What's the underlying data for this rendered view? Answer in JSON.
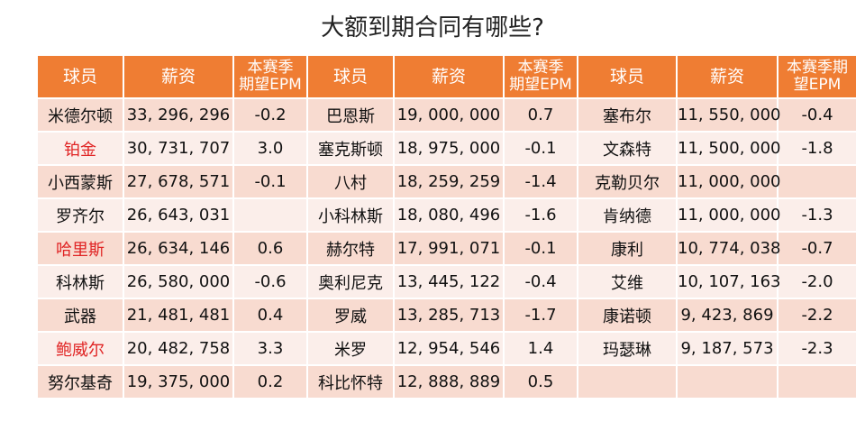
{
  "title": "大额到期合同有哪些?",
  "headers": [
    "球员",
    "薪资",
    "本赛季期望EPM",
    "球员",
    "薪资",
    "本赛季期望EPM",
    "球员",
    "薪资",
    "本赛季期望EPM"
  ],
  "header_lines": [
    [
      "球员"
    ],
    [
      "薪资"
    ],
    [
      "本赛季",
      "期望EPM"
    ],
    [
      "球员"
    ],
    [
      "薪资"
    ],
    [
      "本赛季",
      "期望EPM"
    ],
    [
      "球员"
    ],
    [
      "薪资"
    ],
    [
      "本赛季期",
      "望EPM"
    ]
  ],
  "colors": {
    "header_bg": "#ef7d33",
    "row_odd_bg": "#f8dbd0",
    "row_even_bg": "#fbeeea",
    "highlight_name": "#e02424"
  },
  "rows": [
    [
      {
        "name": "米德尔顿",
        "salary": "33, 296, 296",
        "epm": "-0.2"
      },
      {
        "name": "巴恩斯",
        "salary": "19, 000, 000",
        "epm": "0.7"
      },
      {
        "name": "塞布尔",
        "salary": "11, 550, 000",
        "epm": "-0.4"
      }
    ],
    [
      {
        "name": "铂金",
        "salary": "30, 731, 707",
        "epm": "3.0",
        "highlight": true
      },
      {
        "name": "塞克斯顿",
        "salary": "18, 975, 000",
        "epm": "-0.1"
      },
      {
        "name": "文森特",
        "salary": "11, 500, 000",
        "epm": "-1.8"
      }
    ],
    [
      {
        "name": "小西蒙斯",
        "salary": "27, 678, 571",
        "epm": "-0.1"
      },
      {
        "name": "八村",
        "salary": "18, 259, 259",
        "epm": "-1.4"
      },
      {
        "name": "克勒贝尔",
        "salary": "11, 000, 000",
        "epm": ""
      }
    ],
    [
      {
        "name": "罗齐尔",
        "salary": "26, 643, 031",
        "epm": ""
      },
      {
        "name": "小科林斯",
        "salary": "18, 080, 496",
        "epm": "-1.6"
      },
      {
        "name": "肯纳德",
        "salary": "11, 000, 000",
        "epm": "-1.3"
      }
    ],
    [
      {
        "name": "哈里斯",
        "salary": "26, 634, 146",
        "epm": "0.6",
        "highlight": true
      },
      {
        "name": "赫尔特",
        "salary": "17, 991, 071",
        "epm": "-0.1"
      },
      {
        "name": "康利",
        "salary": "10, 774, 038",
        "epm": "-0.7"
      }
    ],
    [
      {
        "name": "科林斯",
        "salary": "26, 580, 000",
        "epm": "-0.6"
      },
      {
        "name": "奥利尼克",
        "salary": "13, 445, 122",
        "epm": "-0.4"
      },
      {
        "name": "艾维",
        "salary": "10, 107, 163",
        "epm": "-2.0"
      }
    ],
    [
      {
        "name": "武器",
        "salary": "21, 481, 481",
        "epm": "0.4"
      },
      {
        "name": "罗威",
        "salary": "13, 285, 713",
        "epm": "-1.7"
      },
      {
        "name": "康诺顿",
        "salary": "9, 423, 869",
        "epm": "-2.2"
      }
    ],
    [
      {
        "name": "鲍威尔",
        "salary": "20, 482, 758",
        "epm": "3.3",
        "highlight": true
      },
      {
        "name": "米罗",
        "salary": "12, 954, 546",
        "epm": "1.4"
      },
      {
        "name": "玛瑟琳",
        "salary": "9, 187, 573",
        "epm": "-2.3"
      }
    ],
    [
      {
        "name": "努尔基奇",
        "salary": "19, 375, 000",
        "epm": "0.2"
      },
      {
        "name": "科比怀特",
        "salary": "12, 888, 889",
        "epm": "0.5"
      },
      {
        "name": "",
        "salary": "",
        "epm": ""
      }
    ]
  ]
}
